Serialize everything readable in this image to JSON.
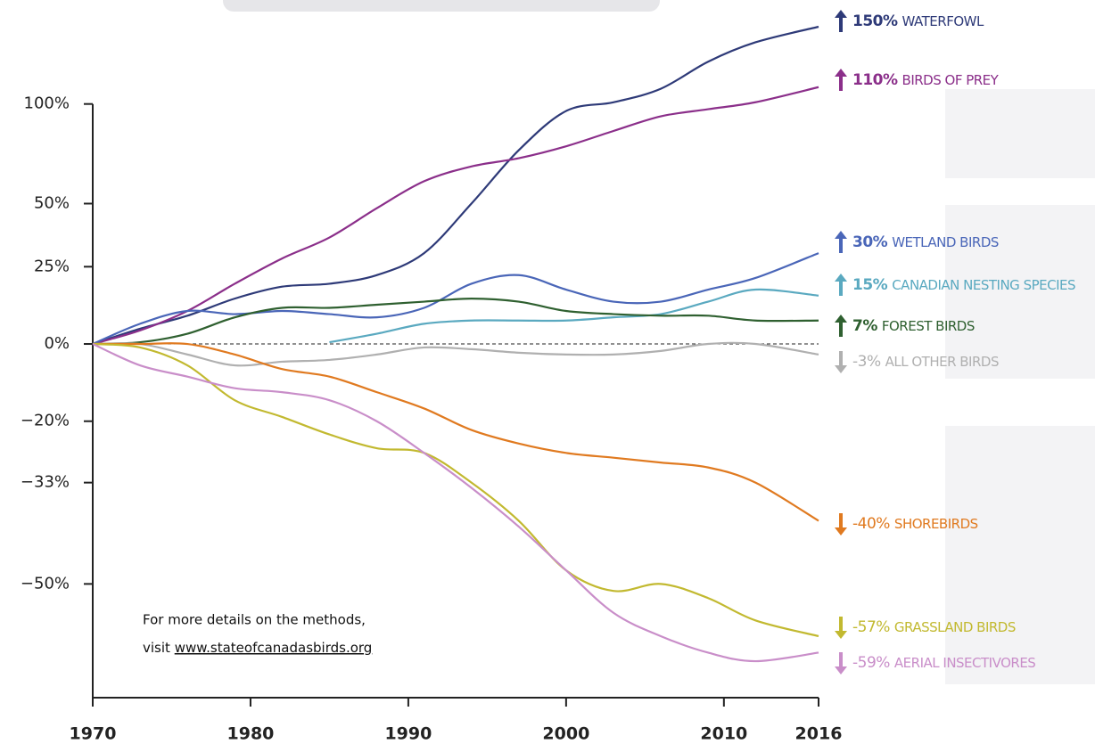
{
  "chart_data": {
    "type": "line",
    "yscale": "log",
    "x": [
      1970,
      1973,
      1976,
      1979,
      1982,
      1985,
      1988,
      1991,
      1994,
      1997,
      2000,
      2003,
      2006,
      2009,
      2012,
      2016
    ],
    "xlim": [
      1970,
      2016
    ],
    "xticks": [
      1970,
      1980,
      1990,
      2000,
      2010,
      2016
    ],
    "ylim": [
      -64,
      150
    ],
    "yticks": [
      {
        "value": -50,
        "label": "−50%"
      },
      {
        "value": -33,
        "label": "−33%"
      },
      {
        "value": -20,
        "label": "−20%"
      },
      {
        "value": 0,
        "label": "0%"
      },
      {
        "value": 25,
        "label": "25%"
      },
      {
        "value": 50,
        "label": "50%"
      },
      {
        "value": 100,
        "label": "100%"
      }
    ],
    "series": [
      {
        "name": "Waterfowl",
        "label": "150%",
        "color": "#2e3a78",
        "values": [
          0,
          4.5,
          8.5,
          14,
          18,
          19,
          22,
          30,
          50,
          75,
          96,
          101,
          109,
          126,
          139,
          150
        ]
      },
      {
        "name": "Birds of Prey",
        "label": "110%",
        "color": "#8b2f8a",
        "values": [
          0,
          4,
          10,
          19,
          28,
          36,
          48,
          60,
          67,
          71,
          77,
          85,
          93,
          97,
          101,
          110
        ]
      },
      {
        "name": "Wetland Birds",
        "label": "30%",
        "color": "#4a66b8",
        "values": [
          0,
          6,
          10,
          9,
          10,
          9,
          8,
          11,
          19,
          22,
          17,
          13,
          13,
          17,
          21,
          30
        ]
      },
      {
        "name": "Canadian Nesting Species",
        "label": "15%",
        "color": "#5aa9c0",
        "values": [
          null,
          null,
          null,
          null,
          null,
          0.5,
          3,
          6,
          7,
          7,
          7,
          8,
          9,
          13,
          17,
          15
        ]
      },
      {
        "name": "Forest Birds",
        "label": "7%",
        "color": "#2f6030",
        "values": [
          0,
          0.5,
          3,
          8,
          11,
          11,
          12,
          13,
          14,
          13,
          10,
          9,
          8.5,
          8.5,
          7,
          7
        ]
      },
      {
        "name": "All Other Birds",
        "label": "-3%",
        "color": "#b0b0b0",
        "values": [
          0,
          0,
          -3,
          -6,
          -5,
          -4.5,
          -3,
          -1,
          -1.5,
          -2.5,
          -3,
          -3,
          -2,
          0,
          0,
          -3
        ]
      },
      {
        "name": "Shorebirds",
        "label": "-40%",
        "color": "#e07a20",
        "values": [
          0,
          0,
          0,
          -3,
          -7,
          -9,
          -13,
          -17,
          -22,
          -25,
          -27,
          -28,
          -29,
          -30,
          -33,
          -40
        ]
      },
      {
        "name": "Grassland Birds",
        "label": "-57%",
        "color": "#c2b930",
        "values": [
          0,
          -1,
          -6,
          -15,
          -19,
          -23,
          -26,
          -27,
          -33,
          -40,
          -48,
          -51,
          -50,
          -52,
          -55,
          -57
        ]
      },
      {
        "name": "Aerial Insectivores",
        "label": "-59%",
        "color": "#c98ec9",
        "values": [
          0,
          -6,
          -9,
          -12,
          -13,
          -15,
          -20,
          -27,
          -34,
          -41,
          -48,
          -54,
          -57,
          -59,
          -60,
          -59
        ]
      }
    ],
    "note": [
      "For more details on the methods,",
      "visit",
      "www.stateofcanadasbirds.org"
    ]
  }
}
